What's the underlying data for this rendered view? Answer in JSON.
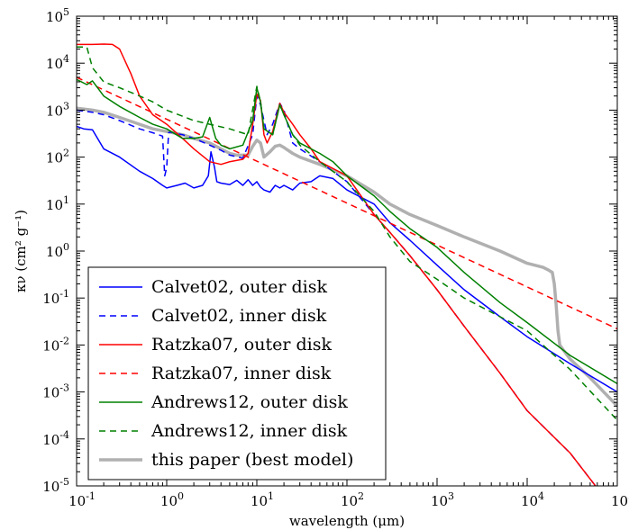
{
  "chart_data": {
    "type": "line",
    "xlabel": "wavelength (μm)",
    "ylabel": "κν (cm² g⁻¹)",
    "x_scale": "log",
    "y_scale": "log",
    "xlim": [
      0.1,
      100000
    ],
    "ylim": [
      1e-05,
      100000
    ],
    "x_ticks": [
      {
        "base": "10",
        "exp": "-1"
      },
      {
        "base": "10",
        "exp": "0"
      },
      {
        "base": "10",
        "exp": "1"
      },
      {
        "base": "10",
        "exp": "2"
      },
      {
        "base": "10",
        "exp": "3"
      },
      {
        "base": "10",
        "exp": "4"
      },
      {
        "base": "10",
        "exp": "5"
      }
    ],
    "y_ticks": [
      {
        "base": "10",
        "exp": "-5"
      },
      {
        "base": "10",
        "exp": "-4"
      },
      {
        "base": "10",
        "exp": "-3"
      },
      {
        "base": "10",
        "exp": "-2"
      },
      {
        "base": "10",
        "exp": "-1"
      },
      {
        "base": "10",
        "exp": "0"
      },
      {
        "base": "10",
        "exp": "1"
      },
      {
        "base": "10",
        "exp": "2"
      },
      {
        "base": "10",
        "exp": "3"
      },
      {
        "base": "10",
        "exp": "4"
      },
      {
        "base": "10",
        "exp": "5"
      }
    ],
    "grid": false,
    "legend_position": "bottom-left",
    "series": [
      {
        "name": "Calvet02, outer disk",
        "color": "#0000ff",
        "style": "solid",
        "width": 1.5,
        "x": [
          0.1,
          0.12,
          0.15,
          0.2,
          0.3,
          0.5,
          0.7,
          0.9,
          1.0,
          1.3,
          1.6,
          2.0,
          2.5,
          2.9,
          3.1,
          3.4,
          3.6,
          4,
          5,
          6,
          7,
          8,
          9,
          10,
          11,
          12,
          14,
          16,
          18,
          20,
          25,
          30,
          40,
          50,
          70,
          100,
          200,
          300,
          500,
          1000,
          2000,
          5000,
          10000,
          30000,
          100000
        ],
        "y": [
          450,
          400,
          380,
          150,
          100,
          50,
          35,
          25,
          22,
          25,
          28,
          22,
          25,
          40,
          130,
          60,
          30,
          28,
          26,
          32,
          25,
          33,
          25,
          30,
          23,
          20,
          18,
          25,
          22,
          25,
          20,
          28,
          30,
          40,
          35,
          20,
          10,
          4,
          1.7,
          0.5,
          0.15,
          0.04,
          0.015,
          0.004,
          0.001
        ]
      },
      {
        "name": "Calvet02, inner disk",
        "color": "#0000ff",
        "style": "dashed",
        "width": 1.5,
        "x": [
          0.1,
          0.15,
          0.2,
          0.3,
          0.5,
          0.7,
          0.9,
          0.95,
          1.0,
          1.05,
          1.1,
          1.5,
          2,
          3,
          4,
          5,
          7,
          9,
          10,
          11,
          13,
          15,
          18,
          20,
          25,
          30,
          50,
          100,
          200,
          300,
          500,
          1000,
          2000,
          5000,
          10000,
          30000,
          100000
        ],
        "y": [
          1000,
          900,
          800,
          600,
          400,
          330,
          280,
          40,
          60,
          330,
          340,
          300,
          250,
          180,
          140,
          110,
          95,
          300,
          2000,
          1300,
          300,
          500,
          1400,
          1000,
          200,
          150,
          80,
          30,
          6,
          2.5,
          0.8,
          0.15,
          0.025,
          0.0025,
          0.0004,
          5e-05,
          2.5e-06
        ]
      },
      {
        "name": "Ratzka07, outer disk",
        "color": "#ff0000",
        "style": "solid",
        "width": 1.5,
        "x": [
          0.1,
          0.15,
          0.2,
          0.25,
          0.3,
          0.4,
          0.5,
          0.7,
          1.0,
          1.5,
          2,
          3,
          4,
          5,
          6,
          7,
          8,
          9,
          10,
          11,
          12,
          13,
          15,
          18,
          20,
          25,
          30,
          40,
          50,
          100,
          200,
          300,
          500,
          1000,
          2000,
          5000,
          10000,
          30000,
          100000
        ],
        "y": [
          25000,
          25000,
          25500,
          25000,
          20000,
          6000,
          2000,
          800,
          500,
          250,
          150,
          80,
          70,
          80,
          85,
          90,
          120,
          500,
          2200,
          1600,
          300,
          200,
          350,
          1400,
          900,
          500,
          300,
          150,
          80,
          40,
          6,
          2.5,
          0.8,
          0.15,
          0.025,
          0.0025,
          0.0004,
          5e-05,
          2.5e-06
        ]
      },
      {
        "name": "Ratzka07, inner disk",
        "color": "#ff0000",
        "style": "dashed",
        "width": 1.5,
        "x": [
          0.1,
          100000
        ],
        "y": [
          5000,
          0.022
        ]
      },
      {
        "name": "Andrews12, outer disk",
        "color": "#008000",
        "style": "solid",
        "width": 1.5,
        "x": [
          0.1,
          0.13,
          0.15,
          0.2,
          0.3,
          0.5,
          0.7,
          1.0,
          1.5,
          2,
          2.5,
          3,
          3.5,
          4,
          5,
          7,
          9,
          10,
          11,
          12,
          15,
          18,
          20,
          25,
          30,
          40,
          50,
          70,
          100,
          200,
          300,
          500,
          1000,
          2000,
          5000,
          10000,
          30000,
          100000
        ],
        "y": [
          4500,
          3500,
          4200,
          2000,
          1200,
          700,
          500,
          400,
          250,
          250,
          270,
          700,
          250,
          180,
          150,
          180,
          600,
          3000,
          1500,
          400,
          300,
          1300,
          800,
          300,
          200,
          150,
          120,
          80,
          40,
          15,
          7,
          3,
          1.2,
          0.35,
          0.08,
          0.03,
          0.006,
          0.0015
        ]
      },
      {
        "name": "Andrews12, inner disk",
        "color": "#008000",
        "style": "dashed",
        "width": 1.5,
        "x": [
          0.1,
          0.13,
          0.15,
          0.2,
          0.3,
          0.5,
          0.7,
          1.0,
          2,
          3,
          5,
          8,
          10,
          11,
          12,
          15,
          18,
          20,
          25,
          30,
          50,
          100,
          200,
          300,
          500,
          1000,
          2000,
          5000,
          10000,
          30000,
          100000
        ],
        "y": [
          22000,
          22000,
          8000,
          4000,
          3000,
          2000,
          1500,
          1000,
          600,
          500,
          400,
          300,
          3200,
          1500,
          400,
          300,
          1300,
          800,
          300,
          180,
          80,
          30,
          7,
          2,
          0.6,
          0.25,
          0.1,
          0.04,
          0.02,
          0.003,
          0.00025
        ]
      },
      {
        "name": "this paper (best model)",
        "color": "#b0b0b0",
        "style": "solid",
        "width": 3.5,
        "x": [
          0.1,
          0.15,
          0.2,
          0.3,
          0.5,
          0.7,
          1.0,
          1.5,
          2,
          3,
          4,
          5,
          6,
          7,
          8,
          9,
          10,
          11,
          12,
          14,
          16,
          18,
          20,
          25,
          30,
          50,
          100,
          200,
          300,
          500,
          1000,
          2000,
          5000,
          10000,
          15000,
          17000,
          19000,
          20000,
          21000,
          22000,
          23000,
          25000,
          30000,
          50000,
          100000
        ],
        "y": [
          1100,
          1000,
          900,
          700,
          500,
          400,
          350,
          300,
          250,
          200,
          150,
          120,
          110,
          110,
          110,
          170,
          230,
          200,
          100,
          130,
          170,
          180,
          160,
          120,
          100,
          70,
          40,
          18,
          10,
          6,
          3.5,
          2,
          1,
          0.55,
          0.45,
          0.4,
          0.35,
          0.2,
          0.07,
          0.02,
          0.01,
          0.008,
          0.005,
          0.002,
          0.0005
        ]
      }
    ]
  }
}
